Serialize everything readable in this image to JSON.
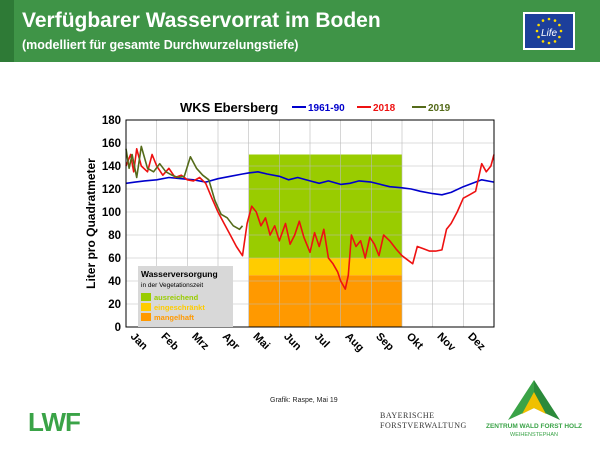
{
  "header": {
    "title": "Verfügbarer Wasservorrat im Boden",
    "subtitle": "(modelliert für gesamte Durchwurzelungstiefe)"
  },
  "footer": {
    "credit": "Grafik: Raspe, Mai 19",
    "logo_left": "LWF",
    "bayern_line1": "BAYERISCHE",
    "bayern_line2": "FORSTVERWALTUNG",
    "zentrum_line1": "ZENTRUM WALD FORST HOLZ",
    "zentrum_line2": "WEIHENSTEPHAN",
    "eu_logo_text": "Life"
  },
  "chart_data": {
    "type": "line",
    "title": "WKS Ebersberg",
    "xlabel": "",
    "ylabel": "Liter pro Quadratmeter",
    "ylim": [
      0,
      180
    ],
    "yticks": [
      0,
      20,
      40,
      60,
      80,
      100,
      120,
      140,
      160,
      180
    ],
    "categories": [
      "Jan",
      "Feb",
      "Mrz",
      "Apr",
      "Mai",
      "Jun",
      "Jul",
      "Aug",
      "Sep",
      "Okt",
      "Nov",
      "Dez"
    ],
    "grid": true,
    "legend_position": "top",
    "bands": {
      "x_range": [
        "Mai",
        "Okt"
      ],
      "legend_title": "Wasserversorgung",
      "legend_subtitle": "in der Vegetationszeit",
      "levels": [
        {
          "label": "ausreichend",
          "from": 60,
          "to": 150,
          "color": "#99cc00"
        },
        {
          "label": "eingeschränkt",
          "from": 45,
          "to": 60,
          "color": "#ffcc00"
        },
        {
          "label": "mangelhaft",
          "from": 0,
          "to": 45,
          "color": "#ff9900"
        }
      ]
    },
    "series": [
      {
        "name": "1961-90",
        "color": "#0000cc",
        "points": [
          [
            0,
            125
          ],
          [
            0.3,
            126
          ],
          [
            0.6,
            127
          ],
          [
            1.0,
            128
          ],
          [
            1.4,
            130
          ],
          [
            1.8,
            129
          ],
          [
            2.2,
            128
          ],
          [
            2.6,
            126
          ],
          [
            3.0,
            129
          ],
          [
            3.4,
            131
          ],
          [
            3.8,
            133
          ],
          [
            4.0,
            134
          ],
          [
            4.3,
            135
          ],
          [
            4.6,
            133
          ],
          [
            5.0,
            131
          ],
          [
            5.3,
            128
          ],
          [
            5.6,
            130
          ],
          [
            6.0,
            127
          ],
          [
            6.3,
            125
          ],
          [
            6.6,
            127
          ],
          [
            7.0,
            124
          ],
          [
            7.3,
            125
          ],
          [
            7.6,
            127
          ],
          [
            8.0,
            126
          ],
          [
            8.3,
            124
          ],
          [
            8.6,
            122
          ],
          [
            9.0,
            121
          ],
          [
            9.3,
            120
          ],
          [
            9.6,
            118
          ],
          [
            10.0,
            116
          ],
          [
            10.3,
            115
          ],
          [
            10.6,
            117
          ],
          [
            11.0,
            122
          ],
          [
            11.3,
            125
          ],
          [
            11.6,
            128
          ],
          [
            12.0,
            126
          ]
        ]
      },
      {
        "name": "2018",
        "color": "#ee1111",
        "points": [
          [
            0,
            140
          ],
          [
            0.15,
            150
          ],
          [
            0.25,
            135
          ],
          [
            0.35,
            155
          ],
          [
            0.5,
            140
          ],
          [
            0.7,
            135
          ],
          [
            0.85,
            150
          ],
          [
            1.0,
            140
          ],
          [
            1.2,
            132
          ],
          [
            1.4,
            138
          ],
          [
            1.6,
            130
          ],
          [
            1.8,
            132
          ],
          [
            2.0,
            128
          ],
          [
            2.2,
            127
          ],
          [
            2.4,
            130
          ],
          [
            2.6,
            125
          ],
          [
            2.8,
            112
          ],
          [
            3.0,
            100
          ],
          [
            3.2,
            90
          ],
          [
            3.4,
            80
          ],
          [
            3.6,
            70
          ],
          [
            3.8,
            62
          ],
          [
            3.95,
            90
          ],
          [
            4.1,
            105
          ],
          [
            4.25,
            100
          ],
          [
            4.4,
            88
          ],
          [
            4.55,
            95
          ],
          [
            4.7,
            80
          ],
          [
            4.85,
            88
          ],
          [
            5.0,
            75
          ],
          [
            5.2,
            90
          ],
          [
            5.35,
            72
          ],
          [
            5.5,
            80
          ],
          [
            5.65,
            92
          ],
          [
            5.8,
            78
          ],
          [
            6.0,
            65
          ],
          [
            6.15,
            82
          ],
          [
            6.3,
            70
          ],
          [
            6.45,
            85
          ],
          [
            6.6,
            60
          ],
          [
            6.75,
            55
          ],
          [
            6.9,
            48
          ],
          [
            7.0,
            40
          ],
          [
            7.15,
            33
          ],
          [
            7.25,
            45
          ],
          [
            7.35,
            80
          ],
          [
            7.5,
            70
          ],
          [
            7.65,
            75
          ],
          [
            7.8,
            60
          ],
          [
            7.95,
            78
          ],
          [
            8.1,
            72
          ],
          [
            8.25,
            62
          ],
          [
            8.4,
            80
          ],
          [
            8.6,
            75
          ],
          [
            8.8,
            68
          ],
          [
            9.0,
            62
          ],
          [
            9.2,
            58
          ],
          [
            9.35,
            55
          ],
          [
            9.5,
            70
          ],
          [
            9.7,
            68
          ],
          [
            9.9,
            66
          ],
          [
            10.1,
            66
          ],
          [
            10.3,
            67
          ],
          [
            10.45,
            85
          ],
          [
            10.6,
            90
          ],
          [
            10.8,
            100
          ],
          [
            11.0,
            112
          ],
          [
            11.2,
            115
          ],
          [
            11.4,
            118
          ],
          [
            11.6,
            142
          ],
          [
            11.75,
            135
          ],
          [
            11.9,
            140
          ],
          [
            12.0,
            150
          ]
        ]
      },
      {
        "name": "2019",
        "color": "#556b1a",
        "points": [
          [
            0,
            155
          ],
          [
            0.1,
            138
          ],
          [
            0.2,
            150
          ],
          [
            0.35,
            130
          ],
          [
            0.5,
            157
          ],
          [
            0.7,
            138
          ],
          [
            0.9,
            135
          ],
          [
            1.1,
            142
          ],
          [
            1.3,
            135
          ],
          [
            1.5,
            132
          ],
          [
            1.7,
            130
          ],
          [
            1.9,
            131
          ],
          [
            2.1,
            148
          ],
          [
            2.3,
            138
          ],
          [
            2.5,
            132
          ],
          [
            2.7,
            128
          ],
          [
            2.9,
            110
          ],
          [
            3.1,
            98
          ],
          [
            3.3,
            95
          ],
          [
            3.5,
            88
          ],
          [
            3.7,
            85
          ],
          [
            3.8,
            88
          ]
        ]
      }
    ]
  }
}
